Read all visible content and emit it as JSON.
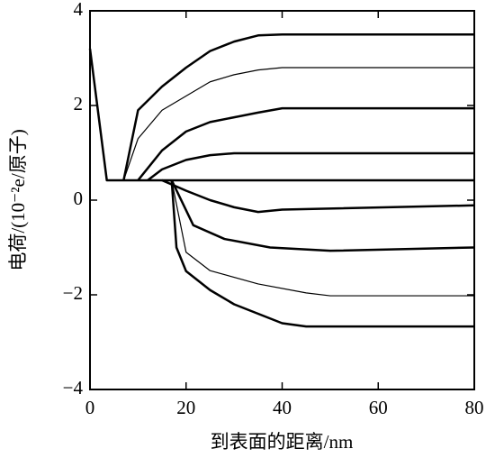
{
  "chart_data": {
    "type": "line",
    "xlabel": "到表面的距离/nm",
    "ylabel": "电荷/(10⁻²e/原子)",
    "xlim": [
      0,
      80
    ],
    "xticks": [
      0,
      20,
      40,
      60,
      80
    ],
    "ylim": [
      -4,
      4
    ],
    "yticks": [
      4,
      2,
      0,
      {
        "value": -2,
        "label": "−2"
      },
      {
        "value": -4,
        "label": "−4"
      }
    ],
    "series": [
      {
        "color": "#000000",
        "stroke_width": 2.5,
        "x": [
          0,
          3.5,
          80
        ],
        "values": [
          3.2,
          0.42,
          0.42
        ]
      },
      {
        "color": "#000000",
        "stroke_width": 2.5,
        "x": [
          7,
          10,
          15,
          20,
          25,
          30,
          35,
          40,
          80
        ],
        "values": [
          0.42,
          1.9,
          2.4,
          2.8,
          3.15,
          3.35,
          3.48,
          3.5,
          3.5
        ]
      },
      {
        "color": "#000000",
        "stroke_width": 1.2,
        "x": [
          7,
          10,
          15,
          20,
          25,
          30,
          35,
          40,
          80
        ],
        "values": [
          0.42,
          1.3,
          1.9,
          2.2,
          2.5,
          2.65,
          2.75,
          2.8,
          2.8
        ]
      },
      {
        "color": "#000000",
        "stroke_width": 2.5,
        "x": [
          10,
          15,
          20,
          25,
          30,
          35,
          40,
          80
        ],
        "values": [
          0.42,
          1.05,
          1.45,
          1.65,
          1.75,
          1.85,
          1.94,
          1.94
        ]
      },
      {
        "color": "#000000",
        "stroke_width": 2.5,
        "x": [
          12,
          15,
          20,
          25,
          30,
          80
        ],
        "values": [
          0.42,
          0.65,
          0.85,
          0.95,
          0.99,
          0.99
        ]
      },
      {
        "color": "#000000",
        "stroke_width": 2.5,
        "x": [
          15,
          20,
          25,
          30,
          35,
          40,
          80
        ],
        "values": [
          0.42,
          0.2,
          0.0,
          -0.15,
          -0.25,
          -0.2,
          -0.11
        ]
      },
      {
        "color": "#000000",
        "stroke_width": 2.5,
        "x": [
          17,
          21.5,
          28,
          37.5,
          50,
          80
        ],
        "values": [
          0.42,
          -0.53,
          -0.82,
          -1.0,
          -1.07,
          -1.0
        ]
      },
      {
        "color": "#000000",
        "stroke_width": 1.2,
        "x": [
          17,
          20,
          25,
          35,
          45,
          50,
          80
        ],
        "values": [
          0.42,
          -1.1,
          -1.49,
          -1.77,
          -1.96,
          -2.02,
          -2.02
        ]
      },
      {
        "color": "#000000",
        "stroke_width": 2.5,
        "x": [
          17,
          18,
          20,
          25,
          30,
          35,
          40,
          45,
          80
        ],
        "values": [
          0.42,
          -1.0,
          -1.5,
          -1.9,
          -2.2,
          -2.4,
          -2.6,
          -2.67,
          -2.67
        ]
      }
    ]
  }
}
